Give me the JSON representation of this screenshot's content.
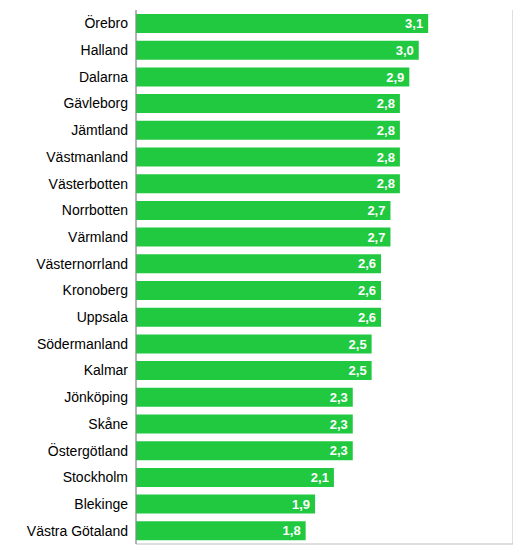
{
  "chart_data": {
    "type": "bar",
    "orientation": "horizontal",
    "categories": [
      "Örebro",
      "Halland",
      "Dalarna",
      "Gävleborg",
      "Jämtland",
      "Västmanland",
      "Västerbotten",
      "Norrbotten",
      "Värmland",
      "Västernorrland",
      "Kronoberg",
      "Uppsala",
      "Södermanland",
      "Kalmar",
      "Jönköping",
      "Skåne",
      "Östergötland",
      "Stockholm",
      "Blekinge",
      "Västra Götaland"
    ],
    "values": [
      3.1,
      3.0,
      2.9,
      2.8,
      2.8,
      2.8,
      2.8,
      2.7,
      2.7,
      2.6,
      2.6,
      2.6,
      2.5,
      2.5,
      2.3,
      2.3,
      2.3,
      2.1,
      1.9,
      1.8
    ],
    "value_labels": [
      "3,1",
      "3,0",
      "2,9",
      "2,8",
      "2,8",
      "2,8",
      "2,8",
      "2,7",
      "2,7",
      "2,6",
      "2,6",
      "2,6",
      "2,5",
      "2,5",
      "2,3",
      "2,3",
      "2,3",
      "2,1",
      "1,9",
      "1,8"
    ],
    "color": "#21c940",
    "xlim": [
      0,
      4
    ],
    "xticks": [
      0,
      1,
      2,
      3,
      4
    ],
    "grid": true,
    "data_labels": true,
    "tick_labels": "y"
  }
}
